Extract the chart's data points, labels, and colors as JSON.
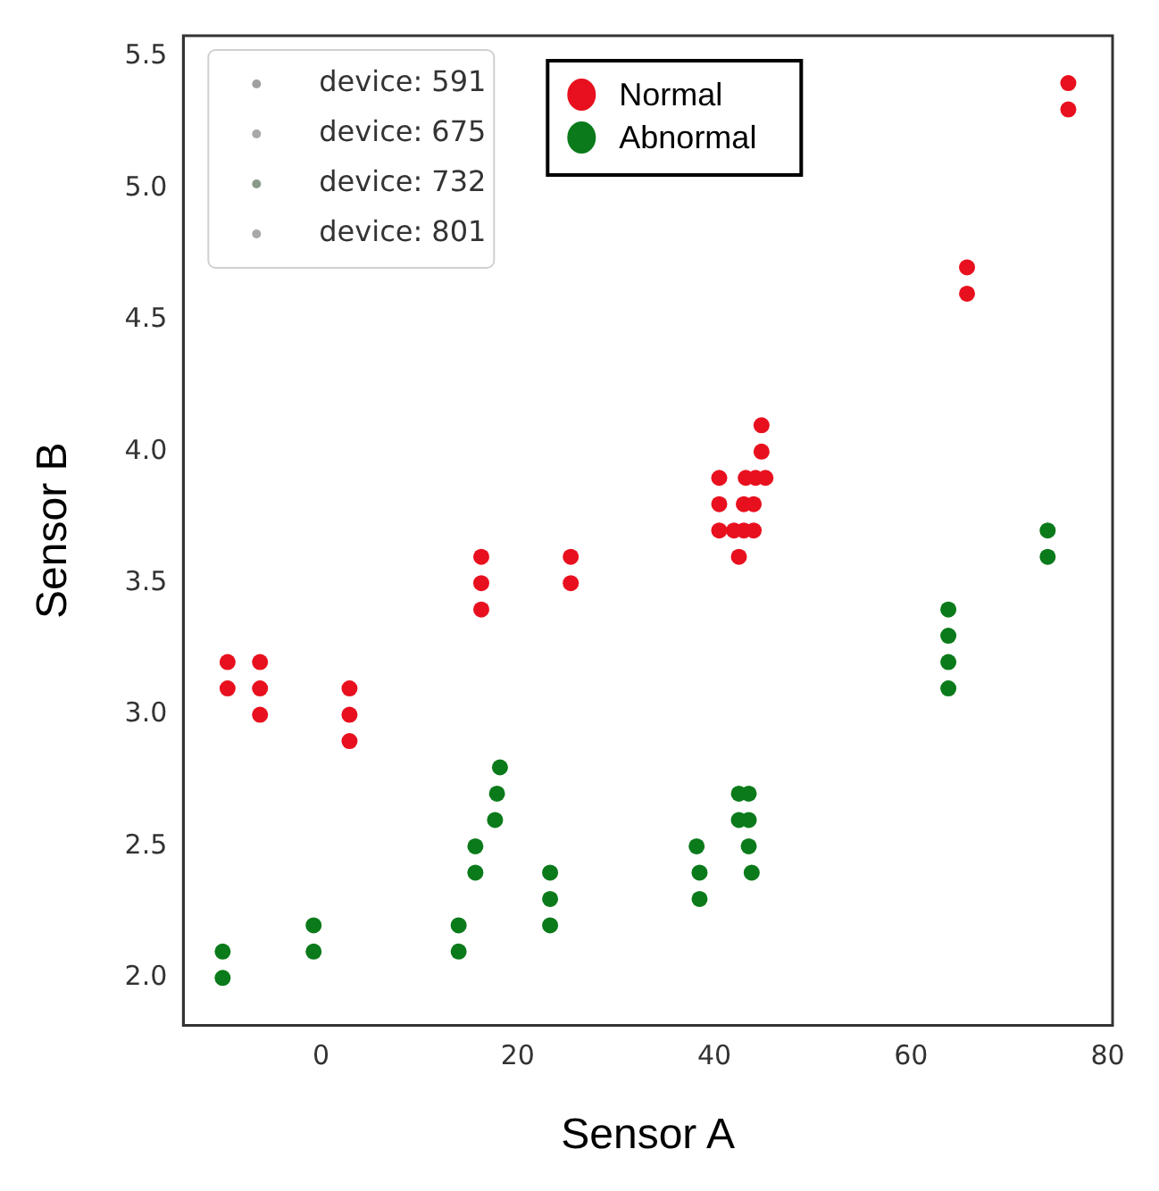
{
  "chart_data": {
    "type": "scatter",
    "xlabel": "Sensor A",
    "ylabel": "Sensor B",
    "xlim": [
      -14,
      80.5
    ],
    "ylim": [
      1.82,
      5.58
    ],
    "xticks": [
      0,
      20,
      40,
      60,
      80
    ],
    "yticks": [
      {
        "value": 2,
        "label": "2.0"
      },
      2.5,
      {
        "value": 3,
        "label": "3.0"
      },
      3.5,
      {
        "value": 4,
        "label": "4.0"
      },
      4.5,
      {
        "value": 5,
        "label": "5.0"
      },
      5.5
    ],
    "grid": false,
    "legend": "top left",
    "marker": "circle",
    "series": [
      {
        "name": "device: 591",
        "color": "#a0a0a0"
      },
      {
        "name": "device: 675",
        "color": "#a8a8a8"
      },
      {
        "name": "device: 732",
        "color": "#8a9a8a"
      },
      {
        "name": "device: 801",
        "color": "#a8a8a8"
      },
      {
        "name": "Normal",
        "color": "#e8101e",
        "x": [
          -9.5,
          -9.5,
          -6.2,
          -6.2,
          -6.2,
          2.9,
          2.9,
          2.9,
          16.3,
          16.3,
          16.3,
          25.4,
          25.4,
          40.5,
          43.2,
          44.2,
          45.2,
          40.5,
          43,
          44,
          40.5,
          42,
          43,
          44,
          42.5,
          44.8,
          44.8,
          65.7,
          65.7,
          76,
          76
        ],
        "values": [
          3.2,
          3.1,
          3.2,
          3.1,
          3.0,
          3.1,
          3.0,
          2.9,
          3.6,
          3.5,
          3.4,
          3.6,
          3.5,
          3.9,
          3.9,
          3.9,
          3.9,
          3.8,
          3.8,
          3.8,
          3.7,
          3.7,
          3.7,
          3.7,
          3.6,
          4.0,
          4.1,
          4.7,
          4.6,
          5.4,
          5.3
        ]
      },
      {
        "name": "Abnormal",
        "color": "#0a7a1a",
        "x": [
          -10,
          -10,
          -0.75,
          -0.75,
          14,
          14,
          15.7,
          15.7,
          18.2,
          17.9,
          17.7,
          23.3,
          23.3,
          23.3,
          38.2,
          38.5,
          38.5,
          42.5,
          43.5,
          42.5,
          43.5,
          43.5,
          43.8,
          63.8,
          63.8,
          63.8,
          63.8,
          73.9,
          73.9
        ],
        "values": [
          2.1,
          2.0,
          2.2,
          2.1,
          2.2,
          2.1,
          2.5,
          2.4,
          2.8,
          2.7,
          2.6,
          2.4,
          2.3,
          2.2,
          2.5,
          2.4,
          2.3,
          2.7,
          2.7,
          2.6,
          2.6,
          2.5,
          2.4,
          3.4,
          3.3,
          3.2,
          3.1,
          3.7,
          3.6
        ]
      }
    ]
  }
}
